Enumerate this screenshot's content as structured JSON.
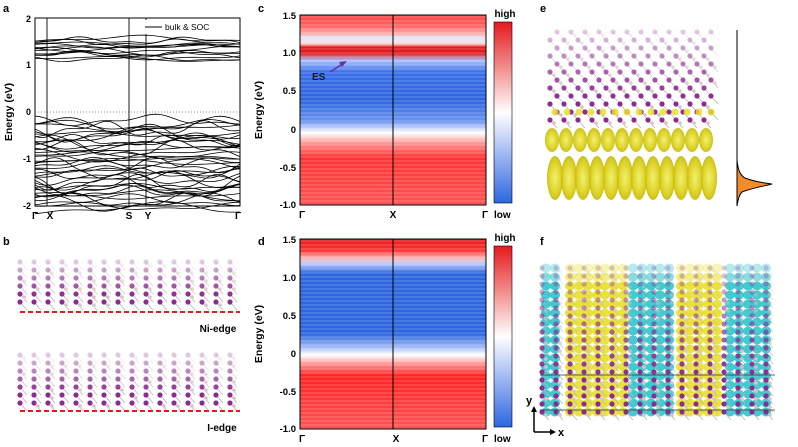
{
  "figure": {
    "panel_labels": [
      "a",
      "b",
      "c",
      "d",
      "e",
      "f"
    ],
    "panel_a": {
      "ylabel": "Energy (eV)",
      "yticks": [
        "-2",
        "-1",
        "0",
        "1",
        "2"
      ],
      "xticks": [
        "Γ",
        "X",
        "S",
        "Y",
        "Γ"
      ],
      "legend": "bulk & SOC"
    },
    "panel_b": {
      "label_top": "Ni-edge",
      "label_bottom": "I-edge"
    },
    "panel_c": {
      "ylabel": "Energy (eV)",
      "yticks": [
        "-1.0",
        "-0.5",
        "0",
        "0.5",
        "1.0",
        "1.5"
      ],
      "xticks": [
        "Γ",
        "X",
        "Γ"
      ],
      "annotation": "ES",
      "colorbar_high": "high",
      "colorbar_low": "low"
    },
    "panel_d": {
      "ylabel": "Energy (eV)",
      "yticks": [
        "-1.0",
        "-0.5",
        "0",
        "0.5",
        "1.0",
        "1.5"
      ],
      "xticks": [
        "Γ",
        "X",
        "Γ"
      ],
      "colorbar_high": "high",
      "colorbar_low": "low"
    },
    "panel_f": {
      "axis_y": "y",
      "axis_x": "x"
    },
    "colors": {
      "red": "#e41a1c",
      "blue": "#2e66e0",
      "yellow": "#e8e02a",
      "cyan": "#2ec4cc",
      "iodine": "#8b2c8f",
      "orange": "#f28c28"
    }
  }
}
